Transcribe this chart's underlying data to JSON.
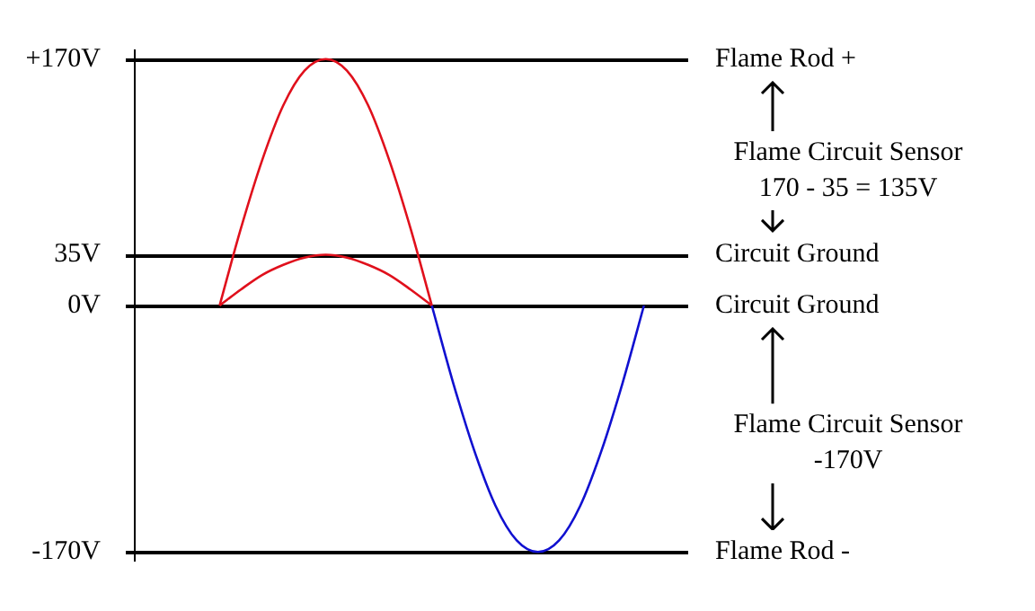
{
  "chart_data": {
    "type": "line",
    "categories": [
      null,
      null,
      null,
      null,
      null,
      null,
      null,
      null,
      null,
      null,
      null,
      null,
      null,
      null,
      null,
      null,
      null,
      null,
      null,
      null,
      null,
      null,
      null,
      null,
      null,
      null,
      null
    ],
    "series": [
      {
        "color": "#e0101c",
        "values": [
          null,
          null,
          null,
          null,
          0,
          53,
          100,
          138,
          162,
          170,
          162,
          138,
          100,
          53,
          0,
          null,
          null,
          null,
          null,
          null,
          null,
          null,
          null,
          null,
          null,
          null,
          null
        ]
      },
      {
        "color": "#e0101c",
        "values": [
          null,
          null,
          null,
          null,
          0,
          11,
          21,
          28,
          33,
          35,
          33,
          28,
          21,
          11,
          0,
          null,
          null,
          null,
          null,
          null,
          null,
          null,
          null,
          null,
          null,
          null,
          null
        ]
      },
      {
        "color": "#1010d0",
        "values": [
          null,
          null,
          null,
          null,
          null,
          null,
          null,
          null,
          null,
          null,
          null,
          null,
          null,
          null,
          0,
          -53,
          -100,
          -138,
          -162,
          -170,
          -162,
          -138,
          -100,
          -53,
          0,
          null,
          null
        ]
      }
    ],
    "ylim": [
      -176,
      176
    ],
    "yticks": [
      {
        "value": 170,
        "label": "+170V"
      },
      {
        "value": 35,
        "label": "35V"
      },
      {
        "value": 0,
        "label": "0V"
      },
      {
        "value": -170,
        "label": "-170V"
      }
    ],
    "ref_lines": [
      {
        "axis": "y",
        "value": 170,
        "label": "Flame Rod +"
      },
      {
        "axis": "y",
        "value": 35,
        "label": "Circuit Ground"
      },
      {
        "axis": "y",
        "value": 0,
        "label": "Circuit Ground"
      },
      {
        "axis": "y",
        "value": -170,
        "label": "Flame Rod -"
      }
    ],
    "annotations": [
      "Flame Circuit Sensor\n170 - 35 = 135V",
      "Flame Circuit Sensor\n-170V"
    ],
    "tick_labels": "y",
    "grid": false,
    "legend": false,
    "marker": "none",
    "line_style": "solid"
  }
}
